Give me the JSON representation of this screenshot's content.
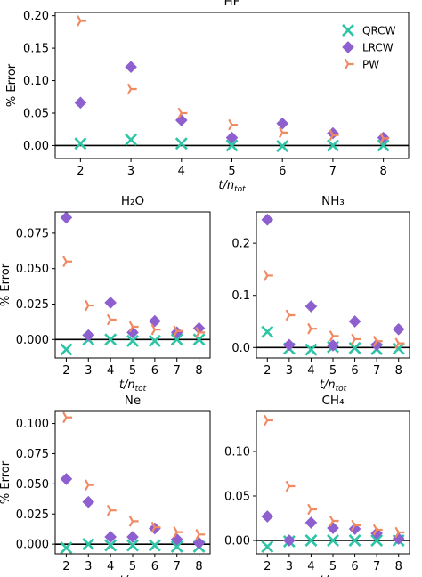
{
  "legend_location": "upper right",
  "series_style": {
    "QRCW": {
      "color": "#2ec4a6",
      "marker": "x"
    },
    "LRCW": {
      "color": "#8e5fcf",
      "marker": "diamond"
    },
    "PW": {
      "color": "#f08a63",
      "marker": "tri-right"
    }
  },
  "chart_data": [
    {
      "type": "scatter",
      "title": "HF",
      "xlabel": "t/n_tot",
      "ylabel": "% Error",
      "x": [
        2,
        3,
        4,
        5,
        6,
        7,
        8
      ],
      "xlim": [
        1.5,
        8.5
      ],
      "ylim": [
        -0.02,
        0.205
      ],
      "yticks": [
        0.0,
        0.05,
        0.1,
        0.15,
        0.2
      ],
      "ytick_labels": [
        "0.00",
        "0.05",
        "0.10",
        "0.15",
        "0.20"
      ],
      "legend": true,
      "series": [
        {
          "name": "QRCW",
          "values": [
            0.003,
            0.009,
            0.003,
            0.0,
            -0.001,
            0.0,
            0.0
          ]
        },
        {
          "name": "LRCW",
          "values": [
            0.066,
            0.121,
            0.039,
            0.012,
            0.034,
            0.019,
            0.012
          ]
        },
        {
          "name": "PW",
          "values": [
            0.192,
            0.087,
            0.05,
            0.032,
            0.02,
            0.016,
            0.011
          ]
        }
      ]
    },
    {
      "type": "scatter",
      "title": "H₂O",
      "xlabel": "t/n_tot",
      "ylabel": "% Error",
      "x": [
        2,
        3,
        4,
        5,
        6,
        7,
        8
      ],
      "xlim": [
        1.5,
        8.5
      ],
      "ylim": [
        -0.013,
        0.09
      ],
      "yticks": [
        0.0,
        0.025,
        0.05,
        0.075
      ],
      "ytick_labels": [
        "0.000",
        "0.025",
        "0.050",
        "0.075"
      ],
      "legend": false,
      "series": [
        {
          "name": "QRCW",
          "values": [
            -0.007,
            0.0,
            0.0,
            -0.001,
            -0.001,
            0.0,
            0.0
          ]
        },
        {
          "name": "LRCW",
          "values": [
            0.086,
            0.003,
            0.026,
            0.005,
            0.013,
            0.005,
            0.008
          ]
        },
        {
          "name": "PW",
          "values": [
            0.055,
            0.024,
            0.014,
            0.009,
            0.007,
            0.006,
            0.005
          ]
        }
      ]
    },
    {
      "type": "scatter",
      "title": "NH₃",
      "xlabel": "t/n_tot",
      "ylabel": "",
      "x": [
        2,
        3,
        4,
        5,
        6,
        7,
        8
      ],
      "xlim": [
        1.5,
        8.5
      ],
      "ylim": [
        -0.02,
        0.26
      ],
      "yticks": [
        0.0,
        0.1,
        0.2
      ],
      "ytick_labels": [
        "0.0",
        "0.1",
        "0.2"
      ],
      "legend": false,
      "series": [
        {
          "name": "QRCW",
          "values": [
            0.03,
            -0.002,
            -0.004,
            0.001,
            -0.001,
            -0.003,
            -0.002
          ]
        },
        {
          "name": "LRCW",
          "values": [
            0.245,
            0.005,
            0.079,
            0.004,
            0.05,
            0.005,
            0.035
          ]
        },
        {
          "name": "PW",
          "values": [
            0.138,
            0.062,
            0.036,
            0.022,
            0.016,
            0.012,
            0.008
          ]
        }
      ]
    },
    {
      "type": "scatter",
      "title": "Ne",
      "xlabel": "t/n_tot",
      "ylabel": "% Error",
      "x": [
        2,
        3,
        4,
        5,
        6,
        7,
        8
      ],
      "xlim": [
        1.5,
        8.5
      ],
      "ylim": [
        -0.008,
        0.11
      ],
      "yticks": [
        0.0,
        0.025,
        0.05,
        0.075,
        0.1
      ],
      "ytick_labels": [
        "0.000",
        "0.025",
        "0.050",
        "0.075",
        "0.100"
      ],
      "legend": false,
      "series": [
        {
          "name": "QRCW",
          "values": [
            -0.003,
            0.0,
            -0.001,
            -0.001,
            -0.001,
            -0.002,
            -0.002
          ]
        },
        {
          "name": "LRCW",
          "values": [
            0.054,
            0.035,
            0.006,
            0.006,
            0.013,
            0.004,
            0.001
          ]
        },
        {
          "name": "PW",
          "values": [
            0.105,
            0.049,
            0.028,
            0.019,
            0.014,
            0.01,
            0.008
          ]
        }
      ]
    },
    {
      "type": "scatter",
      "title": "CH₄",
      "xlabel": "t/n_tot",
      "ylabel": "",
      "x": [
        2,
        3,
        4,
        5,
        6,
        7,
        8
      ],
      "xlim": [
        1.5,
        8.5
      ],
      "ylim": [
        -0.015,
        0.145
      ],
      "yticks": [
        0.0,
        0.05,
        0.1
      ],
      "ytick_labels": [
        "0.00",
        "0.05",
        "0.10"
      ],
      "legend": false,
      "series": [
        {
          "name": "QRCW",
          "values": [
            -0.007,
            -0.001,
            0.0,
            0.0,
            0.0,
            0.0,
            0.0
          ]
        },
        {
          "name": "LRCW",
          "values": [
            0.027,
            0.0,
            0.02,
            0.014,
            0.013,
            0.008,
            0.002
          ]
        },
        {
          "name": "PW",
          "values": [
            0.135,
            0.061,
            0.035,
            0.022,
            0.017,
            0.012,
            0.009
          ]
        }
      ]
    }
  ]
}
